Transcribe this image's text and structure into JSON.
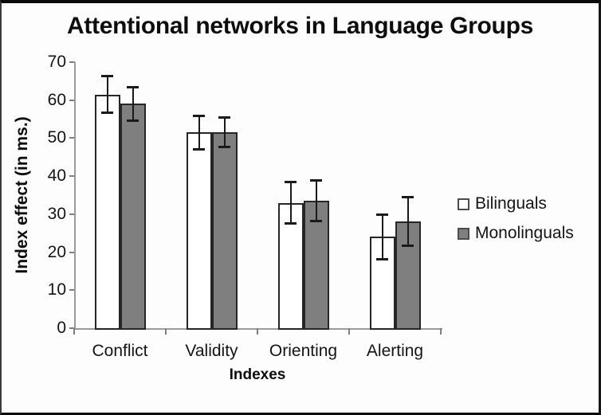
{
  "frame": {
    "background": "#fdfdfd",
    "border_color": "#0a0a0a"
  },
  "chart_data": {
    "type": "bar",
    "title": "Attentional networks in Language Groups",
    "xlabel": "Indexes",
    "ylabel": "Index effect (in ms.)",
    "categories": [
      "Conflict",
      "Validity",
      "Orienting",
      "Alerting"
    ],
    "series": [
      {
        "name": "Bilinguals",
        "fill": "#ffffff",
        "values": [
          61.5,
          51.5,
          33.0,
          24.0
        ],
        "errors": [
          5.0,
          4.5,
          5.5,
          6.0
        ]
      },
      {
        "name": "Monolinguals",
        "fill": "#7f7f7f",
        "values": [
          59.0,
          51.5,
          33.5,
          28.0
        ],
        "errors": [
          4.5,
          4.0,
          5.5,
          6.5
        ]
      }
    ],
    "ylim": [
      0,
      70
    ],
    "ytick_step": 10,
    "yticks": [
      "0",
      "10",
      "20",
      "30",
      "40",
      "50",
      "60",
      "70"
    ],
    "grid": "off",
    "legend_position": "right",
    "bar_border_color": "#262626",
    "error_bar_color": "#1a1a1a",
    "axis_color": "#9b9b9b"
  }
}
